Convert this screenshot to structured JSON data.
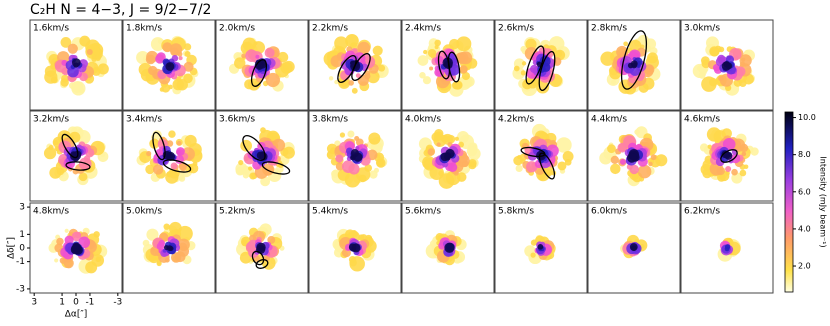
{
  "chart_data": {
    "type": "channel-map",
    "title": "C₂H N = 4−3, J = 9/2−7/2",
    "panels": [
      "1.6km/s",
      "1.8km/s",
      "2.0km/s",
      "2.2km/s",
      "2.4km/s",
      "2.6km/s",
      "2.8km/s",
      "3.0km/s",
      "3.2km/s",
      "3.4km/s",
      "3.6km/s",
      "3.8km/s",
      "4.0km/s",
      "4.2km/s",
      "4.4km/s",
      "4.6km/s",
      "4.8km/s",
      "5.0km/s",
      "5.2km/s",
      "5.4km/s",
      "5.6km/s",
      "5.8km/s",
      "6.0km/s",
      "6.2km/s"
    ],
    "xlabel": "Δα[″]",
    "ylabel": "Δδ[″]",
    "xlim": [
      3.3,
      -3.3
    ],
    "xticks": [
      3,
      1,
      0,
      -1,
      -3
    ],
    "ylim": [
      -3.3,
      3.3
    ],
    "yticks": [
      3,
      1,
      0,
      -1,
      -3
    ],
    "colorbar": {
      "label": "Intensity (mJy beam⁻¹)",
      "lim": [
        0.6,
        10.3
      ],
      "ticks": [
        {
          "value": 2,
          "label": "2.0"
        },
        {
          "value": 4,
          "label": "4.0"
        },
        {
          "value": 6,
          "label": "6.0"
        },
        {
          "value": 8,
          "label": "8.0"
        },
        {
          "value": 10,
          "label": "10.0"
        }
      ]
    }
  }
}
